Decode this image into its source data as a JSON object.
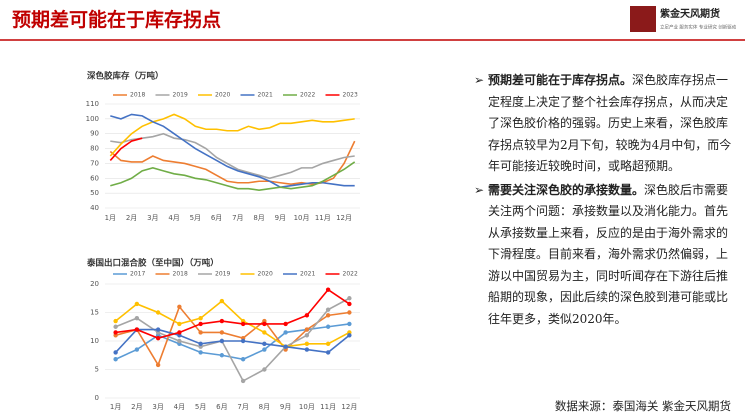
{
  "header": {
    "title": "预期差可能在于库存拐点",
    "logo": "紫金天风期货",
    "tagline": "立足产业 服务实体 专业研究 创新驱动"
  },
  "chart_data": [
    {
      "type": "line",
      "title": "深色胶库存（万吨）",
      "categories": [
        "1月",
        null,
        "2月",
        null,
        "3月",
        null,
        "4月",
        null,
        "5月",
        null,
        "6月",
        null,
        "7月",
        null,
        "8月",
        null,
        "9月",
        null,
        "10月",
        null,
        "11月",
        null,
        "12月",
        null
      ],
      "ylim": [
        40,
        110
      ],
      "yticks": [
        40,
        50,
        60,
        70,
        80,
        90,
        100,
        110
      ],
      "grid": true,
      "series": [
        {
          "name": "2018",
          "color": "#ed7d31",
          "values": [
            78,
            72,
            71,
            71,
            75,
            72,
            71,
            70,
            68,
            66,
            62,
            58,
            57,
            57,
            58,
            58,
            57,
            56,
            57,
            56,
            57,
            60,
            70,
            85
          ]
        },
        {
          "name": "2019",
          "color": "#a5a5a5",
          "values": [
            85,
            84,
            86,
            87,
            88,
            90,
            87,
            86,
            84,
            80,
            74,
            70,
            66,
            64,
            62,
            60,
            62,
            64,
            67,
            67,
            70,
            72,
            74,
            75
          ]
        },
        {
          "name": "2020",
          "color": "#ffc000",
          "values": [
            75,
            83,
            90,
            95,
            98,
            100,
            103,
            100,
            95,
            93,
            93,
            92,
            92,
            95,
            93,
            94,
            97,
            97,
            98,
            99,
            98,
            98,
            99,
            100
          ]
        },
        {
          "name": "2021",
          "color": "#4472c4",
          "values": [
            102,
            100,
            103,
            102,
            98,
            95,
            90,
            85,
            80,
            76,
            72,
            68,
            65,
            63,
            61,
            58,
            54,
            55,
            56,
            57,
            57,
            56,
            55,
            55
          ]
        },
        {
          "name": "2022",
          "color": "#70ad47",
          "values": [
            55,
            57,
            60,
            65,
            67,
            65,
            63,
            62,
            60,
            59,
            57,
            55,
            53,
            53,
            52,
            53,
            54,
            53,
            54,
            55,
            58,
            62,
            66,
            71
          ]
        },
        {
          "name": "2023",
          "color": "#ff0000",
          "values": [
            72,
            80,
            85,
            87,
            null,
            null,
            null,
            null,
            null,
            null,
            null,
            null,
            null,
            null,
            null,
            null,
            null,
            null,
            null,
            null,
            null,
            null,
            null,
            null
          ]
        }
      ]
    },
    {
      "type": "line",
      "title": "泰国出口混合胶（至中国）（万吨）",
      "markers": true,
      "categories": [
        "1月",
        "2月",
        "3月",
        "4月",
        "5月",
        "6月",
        "7月",
        "8月",
        "9月",
        "10月",
        "11月",
        "12月"
      ],
      "ylim": [
        0,
        20
      ],
      "yticks": [
        0,
        5,
        10,
        15,
        20
      ],
      "grid": true,
      "series": [
        {
          "name": "2017",
          "color": "#5b9bd5",
          "values": [
            6.8,
            8.5,
            11,
            9.5,
            8,
            7.5,
            6.8,
            8.5,
            11.5,
            12,
            12.5,
            13
          ]
        },
        {
          "name": "2018",
          "color": "#ed7d31",
          "values": [
            11,
            12,
            5.8,
            16,
            11.5,
            11.5,
            10.5,
            13.5,
            8.5,
            12,
            14.5,
            15
          ]
        },
        {
          "name": "2019",
          "color": "#a5a5a5",
          "values": [
            12.5,
            14,
            11.5,
            10,
            9,
            10,
            3,
            5,
            9,
            11,
            15.5,
            17.5
          ]
        },
        {
          "name": "2020",
          "color": "#ffc000",
          "values": [
            13.5,
            16.5,
            15,
            13,
            14,
            17,
            13.5,
            11.5,
            9,
            9.5,
            9.5,
            11.5
          ]
        },
        {
          "name": "2021",
          "color": "#4472c4",
          "values": [
            8,
            12,
            12,
            11,
            9.5,
            10,
            10,
            9.5,
            9,
            8.5,
            8,
            11
          ]
        },
        {
          "name": "2022",
          "color": "#ff0000",
          "values": [
            11.5,
            12,
            10.5,
            11.5,
            13,
            13.5,
            13,
            13,
            13,
            14.5,
            19,
            16.5
          ]
        }
      ]
    }
  ],
  "bullets": [
    {
      "lead": "预期差可能在于库存拐点。",
      "text": "深色胶库存拐点一定程度上决定了整个社会库存拐点，从而决定了深色胶价格的强弱。历史上来看，深色胶库存拐点较早为2月下旬，较晚为4月中旬，而今年可能接近较晚时间，或略超预期。"
    },
    {
      "lead": "需要关注深色胶的承接数量。",
      "text": "深色胶后市需要关注两个问题：承接数量以及消化能力。首先从承接数量上来看，反应的是由于海外需求的下滑程度。目前来看，海外需求仍然偏弱，上游以中国贸易为主，同时听闻存在下游往后推船期的现象，因此后续的深色胶到港可能或比往年更多，类似2020年。"
    }
  ],
  "source": "数据来源：泰国海关 紫金天风期货"
}
